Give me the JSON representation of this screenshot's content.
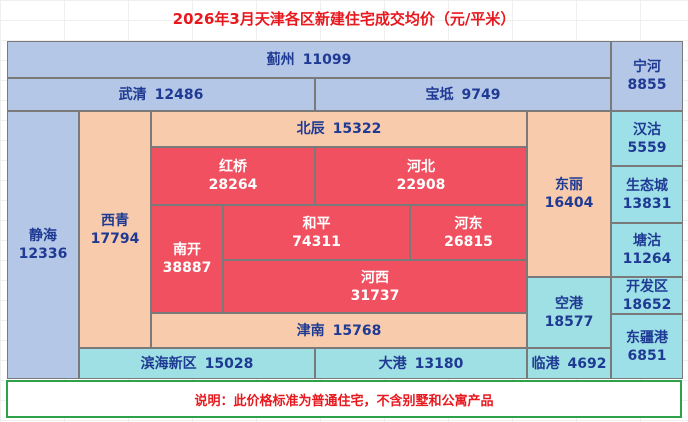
{
  "title": "2026年3月天津各区新建住宅成交均价（元/平米）",
  "note": "说明：此价格标准为普通住宅，不含别墅和公寓产品",
  "colors": {
    "blue": "#b4c7e7",
    "peach": "#f8cbad",
    "red": "#f0505f",
    "teal": "#9ee0e3",
    "cyan": "#9ee0e8",
    "text": "#1f3a93",
    "title": "#e8191e",
    "note_border": "#2ea14b"
  },
  "chart_data": {
    "type": "treemap",
    "title": "2026年3月天津各区新建住宅成交均价（元/平米）",
    "unit": "元/平米",
    "items": [
      {
        "name": "蓟州",
        "value": 11099,
        "color": "blue"
      },
      {
        "name": "宁河",
        "value": 8855,
        "color": "blue"
      },
      {
        "name": "武清",
        "value": 12486,
        "color": "blue"
      },
      {
        "name": "宝坻",
        "value": 9749,
        "color": "blue"
      },
      {
        "name": "静海",
        "value": 12336,
        "color": "blue"
      },
      {
        "name": "西青",
        "value": 17794,
        "color": "peach"
      },
      {
        "name": "北辰",
        "value": 15322,
        "color": "peach"
      },
      {
        "name": "红桥",
        "value": 28264,
        "color": "red"
      },
      {
        "name": "河北",
        "value": 22908,
        "color": "red"
      },
      {
        "name": "南开",
        "value": 38887,
        "color": "red"
      },
      {
        "name": "和平",
        "value": 74311,
        "color": "red"
      },
      {
        "name": "河东",
        "value": 26815,
        "color": "red"
      },
      {
        "name": "河西",
        "value": 31737,
        "color": "red"
      },
      {
        "name": "津南",
        "value": 15768,
        "color": "peach"
      },
      {
        "name": "东丽",
        "value": 16404,
        "color": "peach"
      },
      {
        "name": "空港",
        "value": 18577,
        "color": "teal"
      },
      {
        "name": "汉沽",
        "value": 5559,
        "color": "cyan"
      },
      {
        "name": "生态城",
        "value": 13831,
        "color": "cyan"
      },
      {
        "name": "塘沽",
        "value": 11264,
        "color": "cyan"
      },
      {
        "name": "开发区",
        "value": 18652,
        "color": "cyan"
      },
      {
        "name": "东疆港",
        "value": 6851,
        "color": "cyan"
      },
      {
        "name": "滨海新区",
        "value": 15028,
        "color": "teal"
      },
      {
        "name": "大港",
        "value": 13180,
        "color": "teal"
      },
      {
        "name": "临港",
        "value": 4692,
        "color": "teal"
      }
    ]
  }
}
